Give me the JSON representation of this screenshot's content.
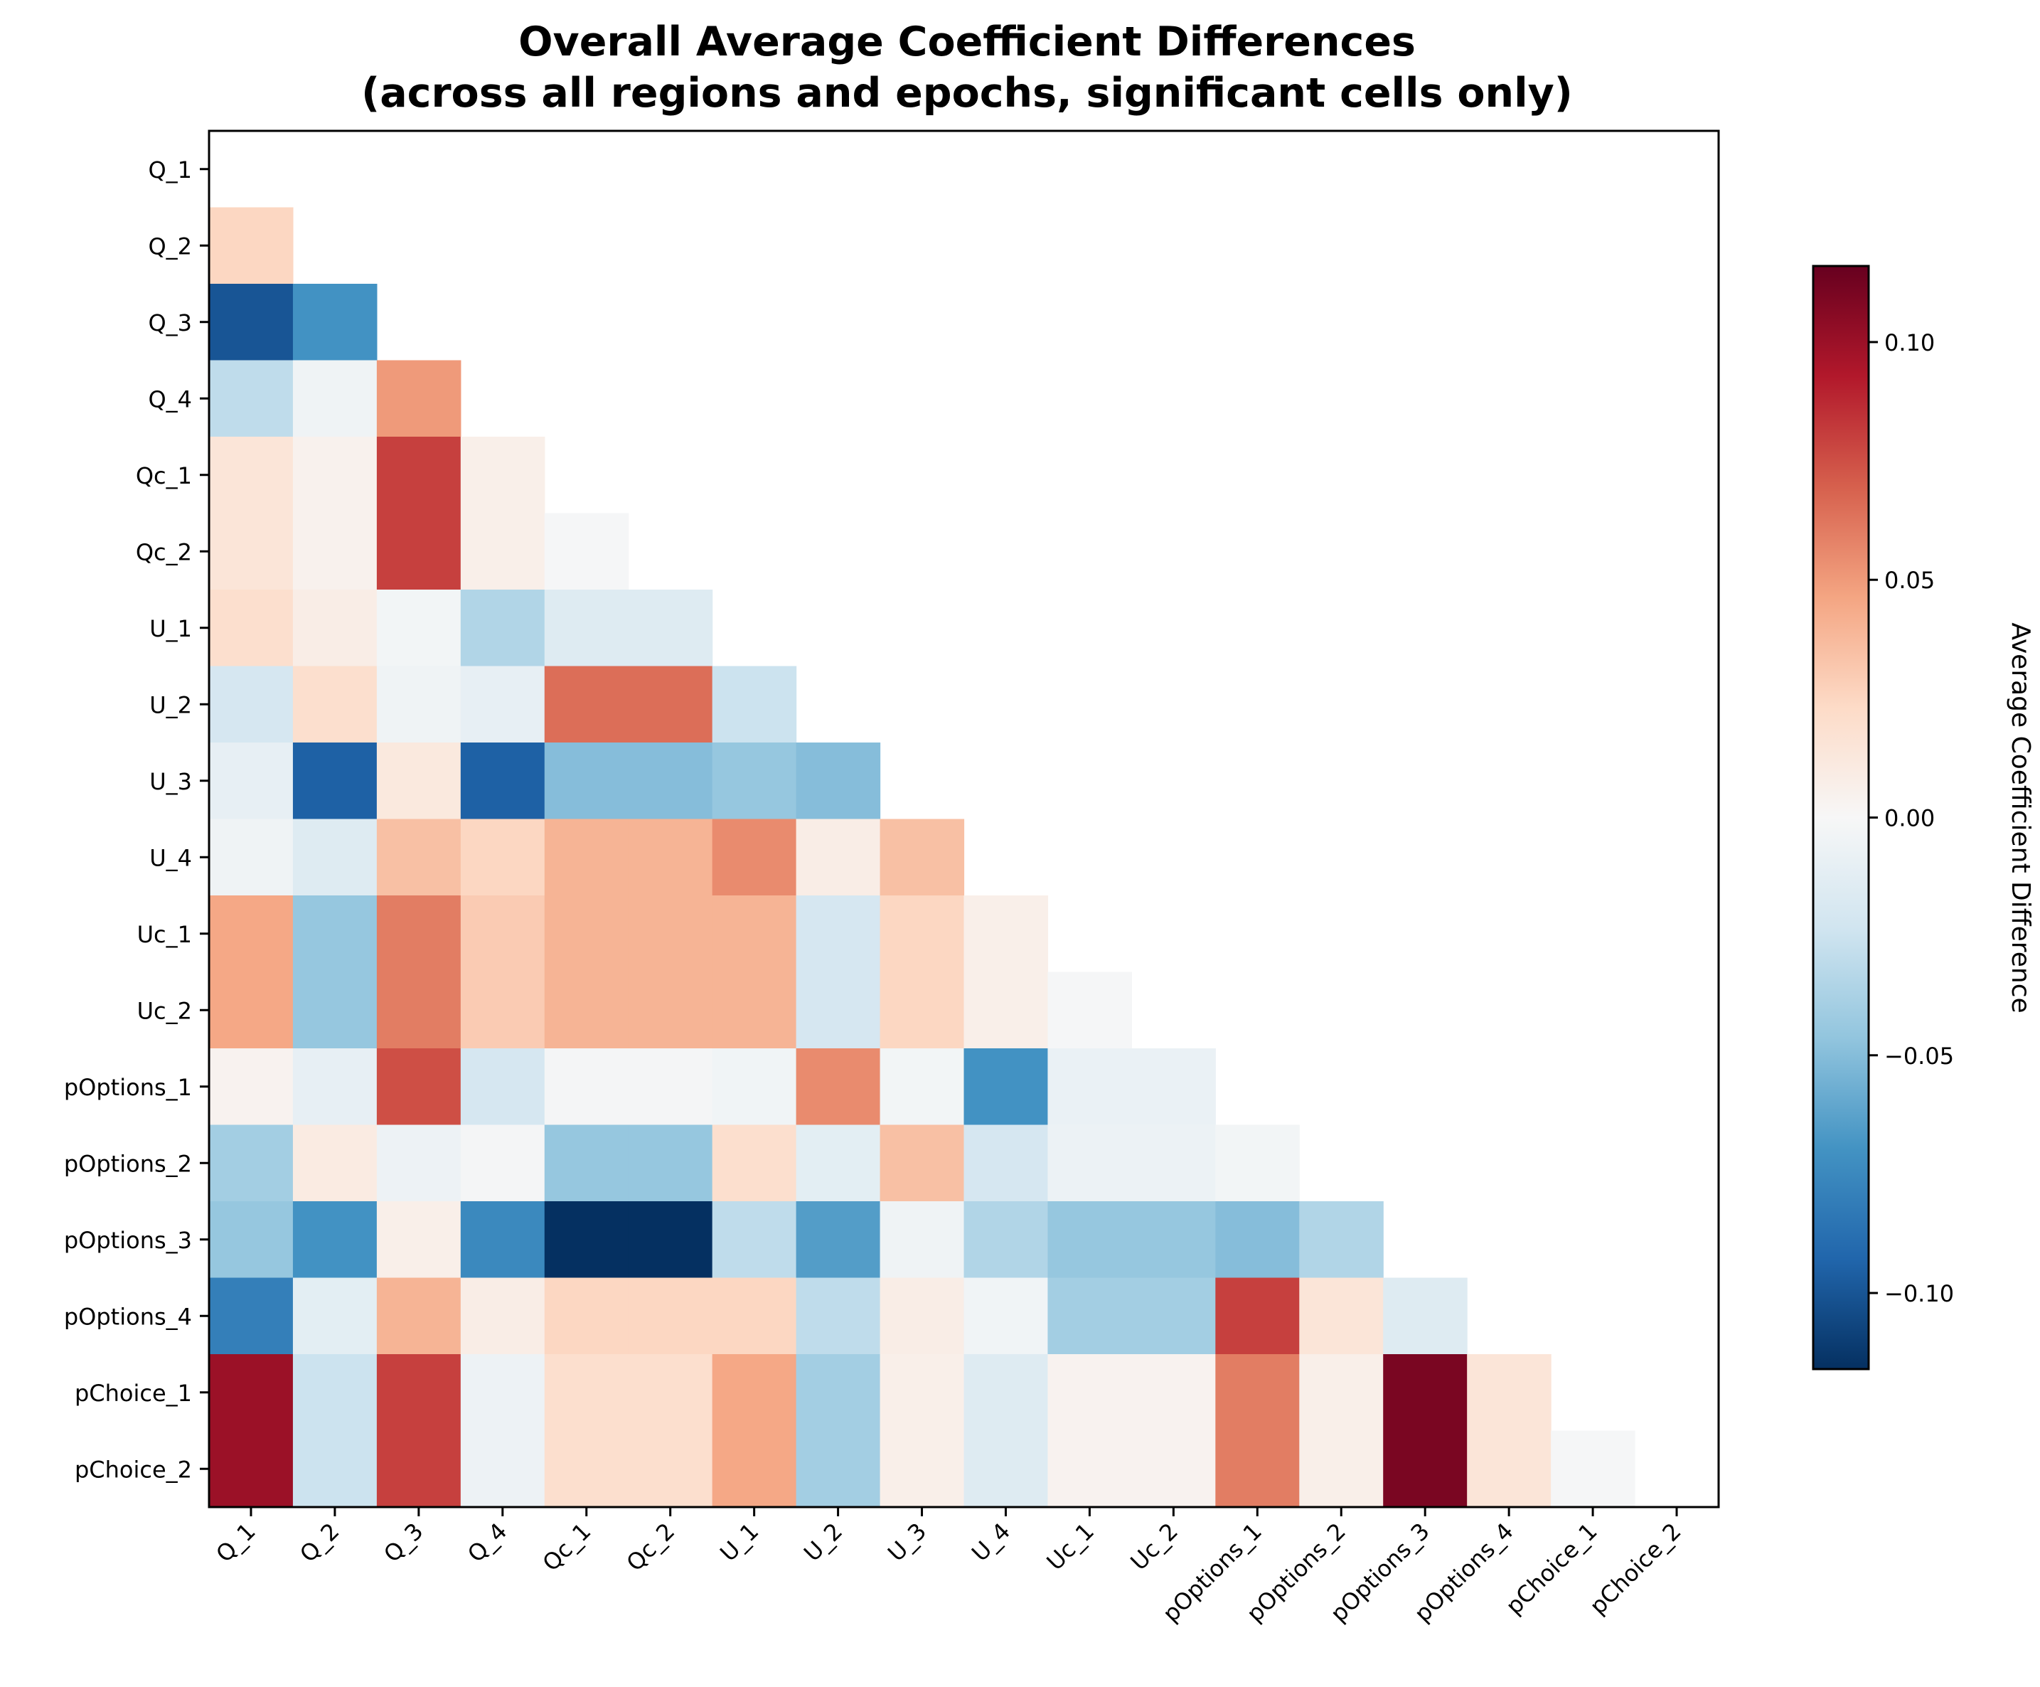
{
  "chart_data": {
    "type": "heatmap",
    "title": "Overall Average Coefficient Differences\n(across all regions and epochs, significant cells only)",
    "title_lines": [
      "Overall Average Coefficient Differences",
      "(across all regions and epochs, significant cells only)"
    ],
    "xlabels": [
      "Q_1",
      "Q_2",
      "Q_3",
      "Q_4",
      "Qc_1",
      "Qc_2",
      "U_1",
      "U_2",
      "U_3",
      "U_4",
      "Uc_1",
      "Uc_2",
      "pOptions_1",
      "pOptions_2",
      "pOptions_3",
      "pOptions_4",
      "pChoice_1",
      "pChoice_2"
    ],
    "ylabels": [
      "Q_1",
      "Q_2",
      "Q_3",
      "Q_4",
      "Qc_1",
      "Qc_2",
      "U_1",
      "U_2",
      "U_3",
      "U_4",
      "Uc_1",
      "Uc_2",
      "pOptions_1",
      "pOptions_2",
      "pOptions_3",
      "pOptions_4",
      "pChoice_1",
      "pChoice_2"
    ],
    "mask": "upper triangle including diagonal",
    "values": [
      [],
      [
        0.025
      ],
      [
        -0.1,
        -0.07
      ],
      [
        -0.03,
        -0.005,
        0.05
      ],
      [
        0.015,
        0.005,
        0.08,
        0.007
      ],
      [
        0.015,
        0.005,
        0.08,
        0.007,
        -0.001
      ],
      [
        0.02,
        0.008,
        -0.003,
        -0.035,
        -0.015,
        -0.015
      ],
      [
        -0.02,
        0.02,
        -0.005,
        -0.01,
        0.065,
        0.065,
        -0.025
      ],
      [
        -0.01,
        -0.095,
        0.012,
        -0.095,
        -0.05,
        -0.05,
        -0.045,
        -0.05
      ],
      [
        -0.005,
        -0.015,
        0.035,
        0.025,
        0.04,
        0.04,
        0.055,
        0.008,
        0.035
      ],
      [
        0.045,
        -0.045,
        0.06,
        0.03,
        0.04,
        0.04,
        0.04,
        -0.02,
        0.025,
        0.007
      ],
      [
        0.045,
        -0.045,
        0.06,
        0.03,
        0.04,
        0.04,
        0.04,
        -0.02,
        0.025,
        0.007,
        -0.001
      ],
      [
        0.004,
        -0.01,
        0.075,
        -0.02,
        -0.002,
        -0.002,
        -0.004,
        0.055,
        -0.003,
        -0.07,
        -0.008,
        -0.008
      ],
      [
        -0.04,
        0.01,
        -0.006,
        -0.002,
        -0.045,
        -0.045,
        0.02,
        -0.012,
        0.035,
        -0.02,
        -0.007,
        -0.007,
        -0.003
      ],
      [
        -0.045,
        -0.07,
        0.007,
        -0.075,
        -0.118,
        -0.118,
        -0.03,
        -0.065,
        -0.005,
        -0.035,
        -0.045,
        -0.045,
        -0.05,
        -0.035
      ],
      [
        -0.08,
        -0.012,
        0.04,
        0.008,
        0.025,
        0.025,
        0.025,
        -0.03,
        0.008,
        -0.004,
        -0.04,
        -0.04,
        0.08,
        0.015,
        -0.015
      ],
      [
        0.1,
        -0.025,
        0.08,
        -0.006,
        0.02,
        0.02,
        0.045,
        -0.04,
        0.007,
        -0.015,
        0.004,
        0.004,
        0.06,
        0.007,
        0.11,
        0.015
      ],
      [
        0.1,
        -0.025,
        0.08,
        -0.006,
        0.02,
        0.02,
        0.045,
        -0.04,
        0.007,
        -0.015,
        0.004,
        0.004,
        0.06,
        0.007,
        0.11,
        0.015,
        -0.001
      ]
    ],
    "colormap": "RdBu_r",
    "vmin": -0.116,
    "vmax": 0.116,
    "colorbar": {
      "label": "Average Coefficient Difference",
      "ticks": [
        0.1,
        0.05,
        0.0,
        -0.05,
        -0.1
      ],
      "tick_labels": [
        "0.10",
        "0.05",
        "0.00",
        "−0.05",
        "−0.10"
      ]
    },
    "grid": false,
    "legend": "none"
  }
}
